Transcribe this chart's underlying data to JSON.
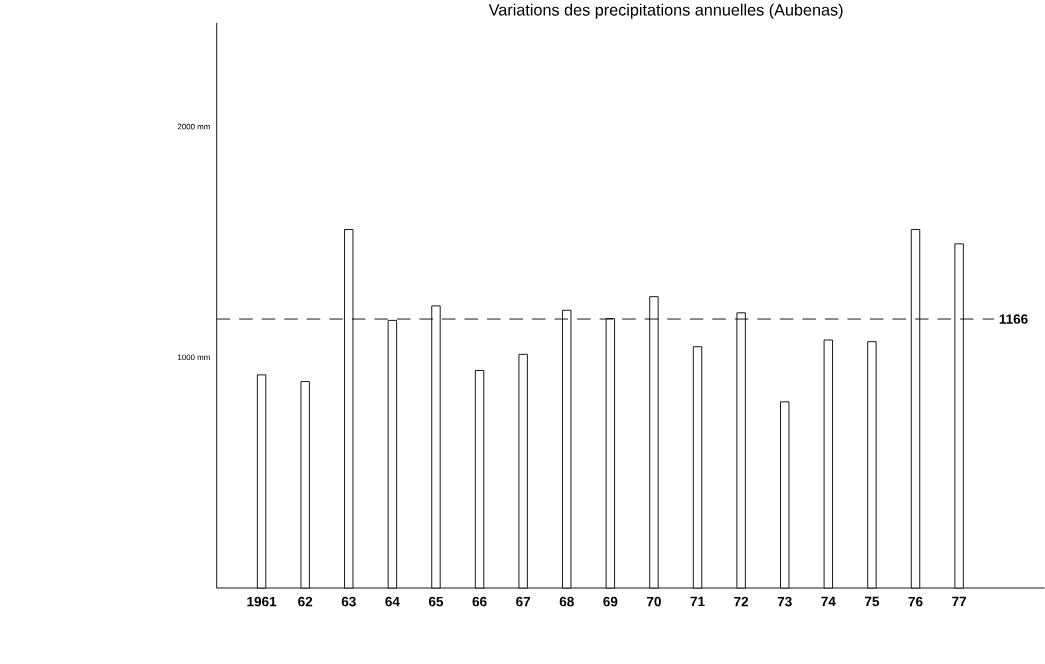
{
  "chart_data": {
    "type": "bar",
    "title": "Variations des precipitations annuelles (Aubenas)",
    "categories": [
      "1961",
      "62",
      "63",
      "64",
      "65",
      "66",
      "67",
      "68",
      "69",
      "70",
      "71",
      "72",
      "73",
      "74",
      "75",
      "76",
      "77"
    ],
    "values": [
      924,
      895,
      1554,
      1160,
      1223,
      943,
      1013,
      1204,
      1168,
      1263,
      1046,
      1193,
      807,
      1075,
      1068,
      1554,
      1492
    ],
    "color": "#000000",
    "ylim": [
      0,
      2450
    ],
    "yticks": [
      {
        "value": 1000,
        "label": "1000 mm"
      },
      {
        "value": 2000,
        "label": "2000 mm"
      }
    ],
    "ref_lines": [
      {
        "axis": "y",
        "value": 1166,
        "label": "1166",
        "line_style": "dashed"
      }
    ],
    "grid": false
  }
}
